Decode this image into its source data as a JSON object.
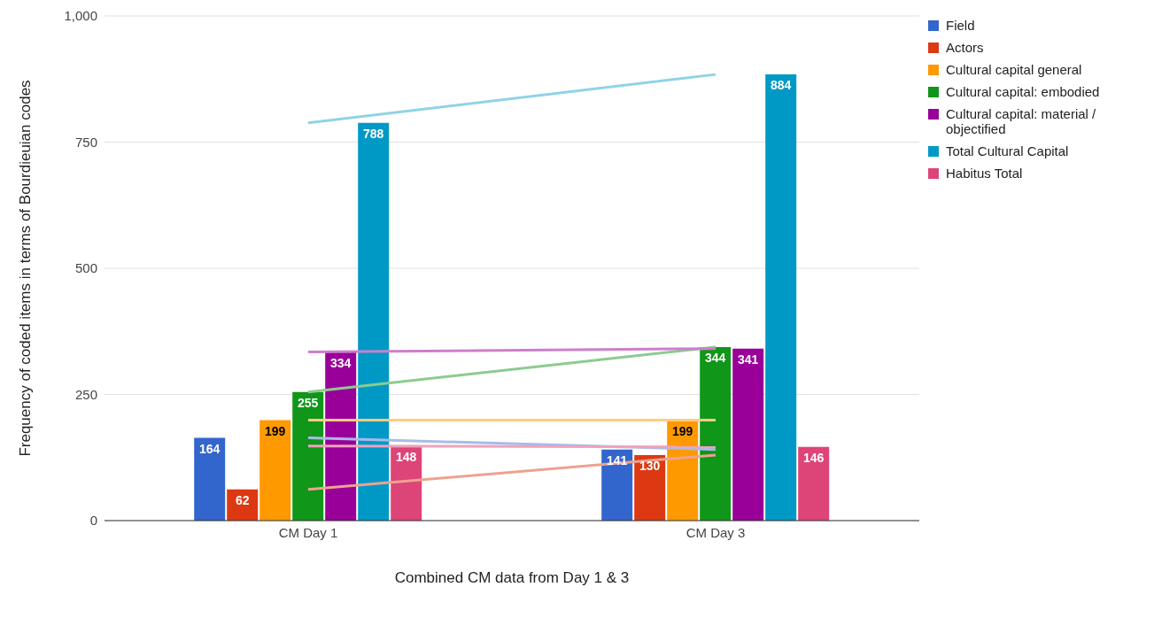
{
  "chart_data": {
    "type": "bar",
    "xlabel": "Combined CM data from Day 1 & 3",
    "ylabel": "Frequency of coded items in terms of Bourdieuian codes",
    "categories": [
      "CM Day 1",
      "CM Day 3"
    ],
    "series": [
      {
        "name": "Field",
        "color": "#3366cc",
        "values": [
          164,
          141
        ],
        "value_labels": [
          "164",
          "141"
        ]
      },
      {
        "name": "Actors",
        "color": "#dc3912",
        "values": [
          62,
          130
        ],
        "value_labels": [
          "62",
          "130"
        ]
      },
      {
        "name": "Cultural capital general",
        "color": "#ff9900",
        "values": [
          199,
          199
        ],
        "value_labels": [
          "199",
          "199"
        ]
      },
      {
        "name": "Cultural capital: embodied",
        "color": "#109618",
        "values": [
          255,
          344
        ],
        "value_labels": [
          "255",
          "344"
        ]
      },
      {
        "name": "Cultural capital: material / objectified",
        "color": "#990099",
        "values": [
          334,
          341
        ],
        "value_labels": [
          "334",
          "341"
        ]
      },
      {
        "name": "Total Cultural Capital",
        "color": "#0099c6",
        "values": [
          788,
          884
        ],
        "value_labels": [
          "788",
          "884"
        ]
      },
      {
        "name": "Habitus Total",
        "color": "#dd4477",
        "values": [
          148,
          146
        ],
        "value_labels": [
          "148",
          "146"
        ]
      },
      {
        "type": "line",
        "color": "#a8bbe8",
        "values": [
          164,
          141
        ]
      },
      {
        "type": "line",
        "color": "#eea28f",
        "values": [
          62,
          130
        ]
      },
      {
        "type": "line",
        "color": "#ffcc80",
        "values": [
          199,
          199
        ]
      },
      {
        "type": "line",
        "color": "#8ccb8f",
        "values": [
          255,
          344
        ]
      },
      {
        "type": "line",
        "color": "#cc7fcc",
        "values": [
          334,
          341
        ]
      },
      {
        "type": "line",
        "color": "#8fd3e8",
        "values": [
          788,
          884
        ]
      },
      {
        "type": "line",
        "color": "#eea3bb",
        "values": [
          148,
          146
        ]
      }
    ],
    "ylim": [
      0,
      1000
    ],
    "yticks": [
      {
        "value": 0,
        "label": "0"
      },
      {
        "value": 250,
        "label": "250"
      },
      {
        "value": 500,
        "label": "500"
      },
      {
        "value": 750,
        "label": "750"
      },
      {
        "value": 1000,
        "label": "1,000"
      }
    ],
    "grid": "y",
    "legend": "right"
  }
}
